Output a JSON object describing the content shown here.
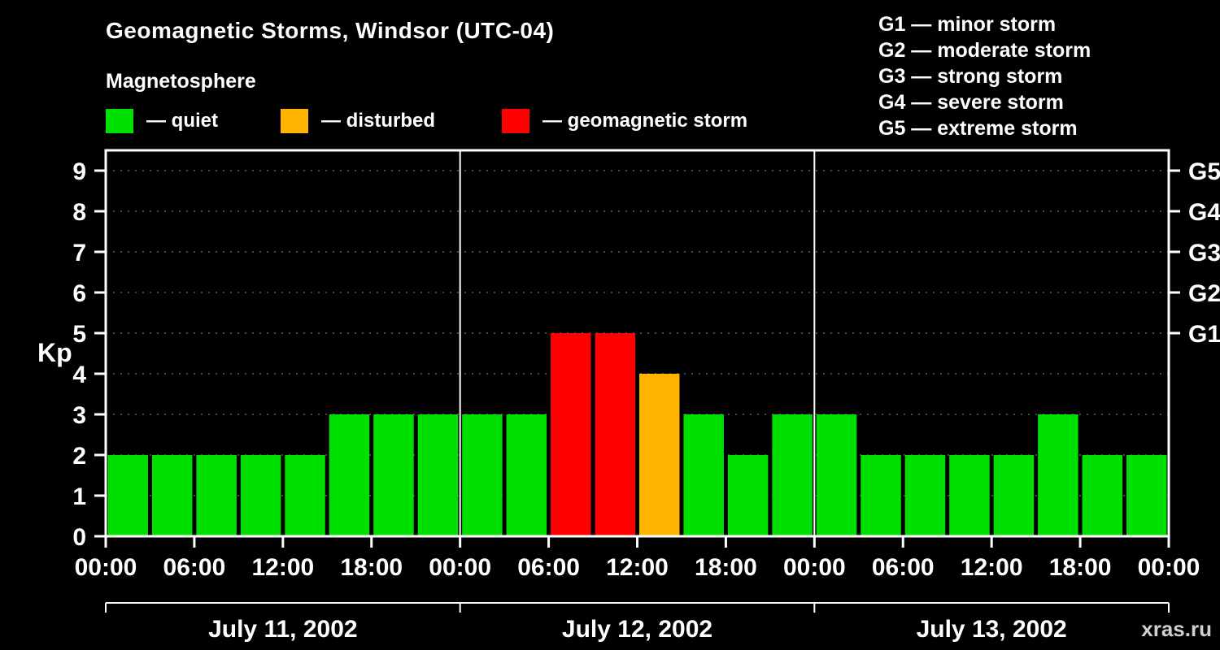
{
  "header": {
    "title": "Geomagnetic Storms, Windsor (UTC-04)",
    "subtitle": "Magnetosphere",
    "legend": [
      {
        "label": "— quiet",
        "color_key": "quiet"
      },
      {
        "label": "— disturbed",
        "color_key": "disturbed"
      },
      {
        "label": "— geomagnetic storm",
        "color_key": "storm"
      }
    ],
    "storm_scale": [
      "G1 — minor storm",
      "G2 — moderate storm",
      "G3 — strong storm",
      "G4 — severe storm",
      "G5 — extreme storm"
    ]
  },
  "watermark": "xras.ru",
  "chart_data": {
    "type": "bar",
    "title": "Geomagnetic Storms, Windsor (UTC-04)",
    "ylabel": "Kp",
    "ylim": [
      0,
      9.5
    ],
    "yticks": [
      0,
      1,
      2,
      3,
      4,
      5,
      6,
      7,
      8,
      9
    ],
    "grid": true,
    "right_axis_labels": [
      {
        "label": "G1",
        "kp": 5
      },
      {
        "label": "G2",
        "kp": 6
      },
      {
        "label": "G3",
        "kp": 7
      },
      {
        "label": "G4",
        "kp": 8
      },
      {
        "label": "G5",
        "kp": 9
      }
    ],
    "bar_interval_hours": 3,
    "days": [
      {
        "date": "July 11, 2002",
        "values": [
          2,
          2,
          2,
          2,
          2,
          3,
          3,
          3
        ]
      },
      {
        "date": "July 12, 2002",
        "values": [
          3,
          3,
          5,
          5,
          4,
          3,
          2,
          3
        ]
      },
      {
        "date": "July 13, 2002",
        "values": [
          3,
          2,
          2,
          2,
          2,
          3,
          2,
          2
        ]
      }
    ],
    "x_tick_labels": [
      "00:00",
      "06:00",
      "12:00",
      "18:00",
      "00:00",
      "06:00",
      "12:00",
      "18:00",
      "00:00",
      "06:00",
      "12:00",
      "18:00",
      "00:00"
    ],
    "color_rules": {
      "quiet_max_kp": 3,
      "disturbed_kp": 4,
      "storm_min_kp": 5
    },
    "colors": {
      "quiet": "#00e000",
      "disturbed": "#ffb400",
      "storm": "#ff0000",
      "axis": "#ffffff",
      "grid": "#909090",
      "background": "#000000"
    }
  }
}
